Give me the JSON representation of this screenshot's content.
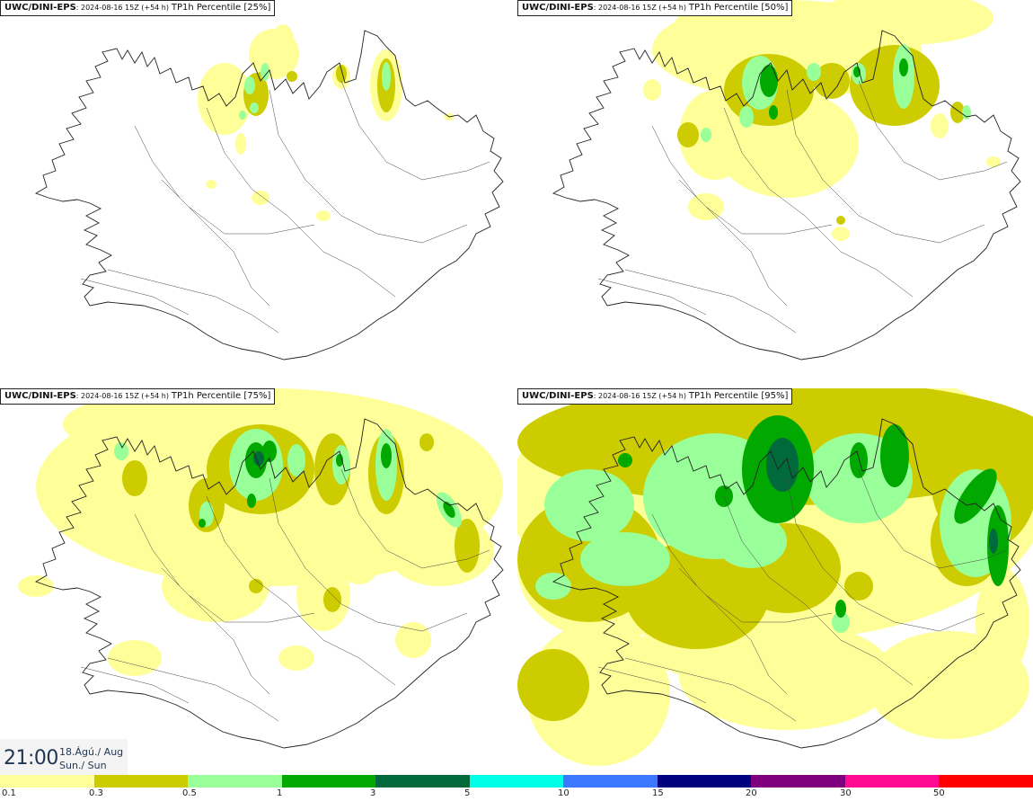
{
  "panels": [
    {
      "model": "UWC/DINI-EPS",
      "run": ": 2024-08-16 15Z (+54 h)",
      "product": "TP1h Percentile [25%]"
    },
    {
      "model": "UWC/DINI-EPS",
      "run": ": 2024-08-16 15Z (+54 h)",
      "product": "TP1h Percentile [50%]"
    },
    {
      "model": "UWC/DINI-EPS",
      "run": ": 2024-08-16 15Z (+54 h)",
      "product": "TP1h Percentile [75%]"
    },
    {
      "model": "UWC/DINI-EPS",
      "run": ": 2024-08-16 15Z (+54 h)",
      "product": "TP1h Percentile [95%]"
    }
  ],
  "valid_time": {
    "time": "21:00",
    "date": "18.Ágú./ Aug",
    "weekday": "Sun./ Sun"
  },
  "colorbar": {
    "colors": [
      "#ffff99",
      "#cccc00",
      "#99ff99",
      "#00a800",
      "#006a3c",
      "#00ffe6",
      "#3c78ff",
      "#00007f",
      "#7f007f",
      "#ff0a91",
      "#ff0000"
    ],
    "labels": [
      "0.1",
      "0.3",
      "0.5",
      "1",
      "3",
      "5",
      "10",
      "15",
      "20",
      "30",
      "50"
    ]
  }
}
